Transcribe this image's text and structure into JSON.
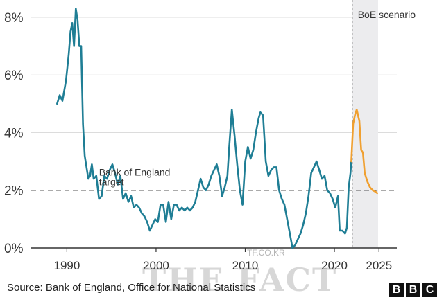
{
  "chart_data": {
    "type": "line",
    "title": "",
    "xlabel": "",
    "ylabel": "",
    "xlim": [
      1986,
      2027
    ],
    "ylim": [
      0,
      8.6
    ],
    "x_ticks": [
      1990,
      2000,
      2010,
      2020,
      2025
    ],
    "x_tick_labels": [
      "1990",
      "2000",
      "2010",
      "2020",
      "2025"
    ],
    "y_ticks": [
      0,
      2,
      4,
      6,
      8
    ],
    "y_tick_labels": [
      "0%",
      "2%",
      "4%",
      "6%",
      "8%"
    ],
    "grid": "horizontal",
    "series": [
      {
        "color": "#1f7e95",
        "points": [
          [
            1988.9,
            5.0
          ],
          [
            1989.2,
            5.3
          ],
          [
            1989.5,
            5.1
          ],
          [
            1989.9,
            5.8
          ],
          [
            1990.2,
            6.7
          ],
          [
            1990.4,
            7.5
          ],
          [
            1990.6,
            7.8
          ],
          [
            1990.8,
            7.0
          ],
          [
            1991.0,
            8.3
          ],
          [
            1991.2,
            7.9
          ],
          [
            1991.4,
            7.0
          ],
          [
            1991.6,
            7.0
          ],
          [
            1991.8,
            4.3
          ],
          [
            1992.0,
            3.2
          ],
          [
            1992.2,
            2.8
          ],
          [
            1992.4,
            2.4
          ],
          [
            1992.6,
            2.5
          ],
          [
            1992.8,
            2.9
          ],
          [
            1993.0,
            2.4
          ],
          [
            1993.3,
            2.5
          ],
          [
            1993.6,
            1.7
          ],
          [
            1993.9,
            1.8
          ],
          [
            1994.2,
            2.5
          ],
          [
            1994.5,
            2.4
          ],
          [
            1994.8,
            2.7
          ],
          [
            1995.1,
            2.9
          ],
          [
            1995.4,
            2.6
          ],
          [
            1995.7,
            2.2
          ],
          [
            1996.0,
            2.5
          ],
          [
            1996.3,
            1.7
          ],
          [
            1996.6,
            1.9
          ],
          [
            1996.9,
            1.6
          ],
          [
            1997.2,
            1.8
          ],
          [
            1997.5,
            1.4
          ],
          [
            1997.8,
            1.5
          ],
          [
            1998.1,
            1.4
          ],
          [
            1998.4,
            1.2
          ],
          [
            1998.7,
            1.1
          ],
          [
            1999.0,
            0.9
          ],
          [
            1999.3,
            0.6
          ],
          [
            1999.6,
            0.8
          ],
          [
            1999.9,
            1.0
          ],
          [
            2000.2,
            0.9
          ],
          [
            2000.5,
            1.5
          ],
          [
            2000.8,
            1.5
          ],
          [
            2001.1,
            0.9
          ],
          [
            2001.4,
            1.6
          ],
          [
            2001.7,
            1.0
          ],
          [
            2002.0,
            1.5
          ],
          [
            2002.3,
            1.5
          ],
          [
            2002.6,
            1.3
          ],
          [
            2002.9,
            1.4
          ],
          [
            2003.2,
            1.3
          ],
          [
            2003.5,
            1.4
          ],
          [
            2003.8,
            1.3
          ],
          [
            2004.1,
            1.4
          ],
          [
            2004.4,
            1.6
          ],
          [
            2004.7,
            2.0
          ],
          [
            2005.0,
            2.4
          ],
          [
            2005.3,
            2.1
          ],
          [
            2005.6,
            2.0
          ],
          [
            2005.9,
            2.2
          ],
          [
            2006.2,
            2.5
          ],
          [
            2006.5,
            2.7
          ],
          [
            2006.8,
            2.9
          ],
          [
            2007.1,
            2.5
          ],
          [
            2007.4,
            1.8
          ],
          [
            2007.7,
            2.1
          ],
          [
            2008.0,
            2.5
          ],
          [
            2008.2,
            3.5
          ],
          [
            2008.5,
            4.8
          ],
          [
            2008.8,
            3.9
          ],
          [
            2009.1,
            2.9
          ],
          [
            2009.4,
            2.0
          ],
          [
            2009.7,
            1.5
          ],
          [
            2010.0,
            3.0
          ],
          [
            2010.3,
            3.5
          ],
          [
            2010.6,
            3.1
          ],
          [
            2010.9,
            3.4
          ],
          [
            2011.2,
            4.0
          ],
          [
            2011.5,
            4.5
          ],
          [
            2011.7,
            4.7
          ],
          [
            2012.0,
            4.6
          ],
          [
            2012.3,
            3.0
          ],
          [
            2012.6,
            2.5
          ],
          [
            2012.9,
            2.7
          ],
          [
            2013.2,
            2.8
          ],
          [
            2013.5,
            2.8
          ],
          [
            2013.8,
            2.0
          ],
          [
            2014.1,
            1.7
          ],
          [
            2014.4,
            1.5
          ],
          [
            2014.7,
            1.0
          ],
          [
            2015.0,
            0.5
          ],
          [
            2015.3,
            0.0
          ],
          [
            2015.6,
            0.1
          ],
          [
            2015.9,
            0.3
          ],
          [
            2016.2,
            0.5
          ],
          [
            2016.5,
            0.8
          ],
          [
            2016.8,
            1.2
          ],
          [
            2017.1,
            1.8
          ],
          [
            2017.4,
            2.6
          ],
          [
            2017.7,
            2.8
          ],
          [
            2018.0,
            3.0
          ],
          [
            2018.3,
            2.7
          ],
          [
            2018.6,
            2.4
          ],
          [
            2018.9,
            2.5
          ],
          [
            2019.2,
            2.0
          ],
          [
            2019.5,
            1.9
          ],
          [
            2019.8,
            1.7
          ],
          [
            2020.1,
            1.4
          ],
          [
            2020.4,
            1.8
          ],
          [
            2020.6,
            0.6
          ],
          [
            2020.9,
            0.6
          ],
          [
            2021.2,
            0.5
          ],
          [
            2021.4,
            0.7
          ],
          [
            2021.6,
            2.1
          ],
          [
            2021.8,
            2.6
          ],
          [
            2021.9,
            3.0
          ]
        ]
      },
      {
        "color": "#f0a030",
        "points": [
          [
            2021.9,
            3.0
          ],
          [
            2022.1,
            4.3
          ],
          [
            2022.3,
            4.6
          ],
          [
            2022.5,
            4.8
          ],
          [
            2022.8,
            4.4
          ],
          [
            2023.0,
            3.4
          ],
          [
            2023.2,
            3.3
          ],
          [
            2023.4,
            2.6
          ],
          [
            2023.7,
            2.3
          ],
          [
            2024.0,
            2.1
          ],
          [
            2024.3,
            2.0
          ],
          [
            2024.6,
            1.95
          ],
          [
            2024.8,
            1.9
          ]
        ]
      }
    ],
    "reference_line": {
      "y": 2,
      "label_line1": "Bank of England",
      "label_line2": "target",
      "style": "dashed"
    },
    "forecast_region": {
      "x_start": 2022.0,
      "x_end": 2024.9,
      "label": "BoE scenario",
      "fill": "#ececee"
    }
  },
  "footer": {
    "source": "Source: Bank of England, Office for National Statistics",
    "brand_letters": [
      "B",
      "B",
      "C"
    ]
  },
  "watermark": {
    "text": "THE FACT",
    "small_text": "TF.CO.KR"
  }
}
